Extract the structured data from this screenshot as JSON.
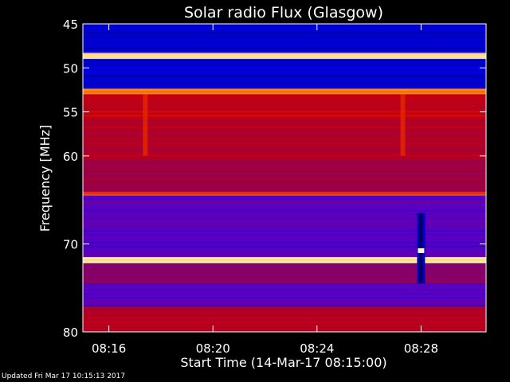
{
  "chart_data": {
    "type": "heatmap",
    "title": "Solar radio Flux (Glasgow)",
    "xlabel": "Start Time (14-Mar-17 08:15:00)",
    "ylabel": "Frequency [MHz]",
    "x_range_minutes": [
      0,
      15.5
    ],
    "x_ticks": [
      {
        "minute": 1,
        "label": "08:16"
      },
      {
        "minute": 5,
        "label": "08:20"
      },
      {
        "minute": 9,
        "label": "08:24"
      },
      {
        "minute": 13,
        "label": "08:28"
      }
    ],
    "y_range_mhz": [
      45,
      80
    ],
    "y_ticks": [
      {
        "mhz": 45,
        "label": "45"
      },
      {
        "mhz": 50,
        "label": "50"
      },
      {
        "mhz": 55,
        "label": "55"
      },
      {
        "mhz": 60,
        "label": "60"
      },
      {
        "mhz": 70,
        "label": "70"
      },
      {
        "mhz": 80,
        "label": "80"
      }
    ],
    "intensity_bands": [
      {
        "from_mhz": 45.0,
        "to_mhz": 48.2,
        "level": 0.12
      },
      {
        "from_mhz": 48.2,
        "to_mhz": 49.0,
        "level": 0.95
      },
      {
        "from_mhz": 49.0,
        "to_mhz": 52.3,
        "level": 0.12
      },
      {
        "from_mhz": 52.3,
        "to_mhz": 53.0,
        "level": 0.85
      },
      {
        "from_mhz": 53.0,
        "to_mhz": 56.0,
        "level": 0.55
      },
      {
        "from_mhz": 56.0,
        "to_mhz": 60.5,
        "level": 0.5
      },
      {
        "from_mhz": 60.5,
        "to_mhz": 64.0,
        "level": 0.45
      },
      {
        "from_mhz": 64.0,
        "to_mhz": 64.5,
        "level": 0.7
      },
      {
        "from_mhz": 64.5,
        "to_mhz": 71.5,
        "level": 0.3
      },
      {
        "from_mhz": 71.5,
        "to_mhz": 72.2,
        "level": 0.95
      },
      {
        "from_mhz": 72.2,
        "to_mhz": 74.5,
        "level": 0.4
      },
      {
        "from_mhz": 74.5,
        "to_mhz": 77.0,
        "level": 0.3
      },
      {
        "from_mhz": 77.0,
        "to_mhz": 80.0,
        "level": 0.5
      }
    ],
    "features": [
      {
        "type": "vertical-burst",
        "minute": 13.0,
        "from_mhz": 66.5,
        "to_mhz": 74.5
      },
      {
        "type": "interference-column",
        "minute": 2.4,
        "from_mhz": 53.0,
        "to_mhz": 60.0
      },
      {
        "type": "interference-column",
        "minute": 12.3,
        "from_mhz": 53.0,
        "to_mhz": 60.0
      }
    ]
  },
  "footer": {
    "updated_text": "Updated Fri Mar 17 10:15:13 2017"
  }
}
